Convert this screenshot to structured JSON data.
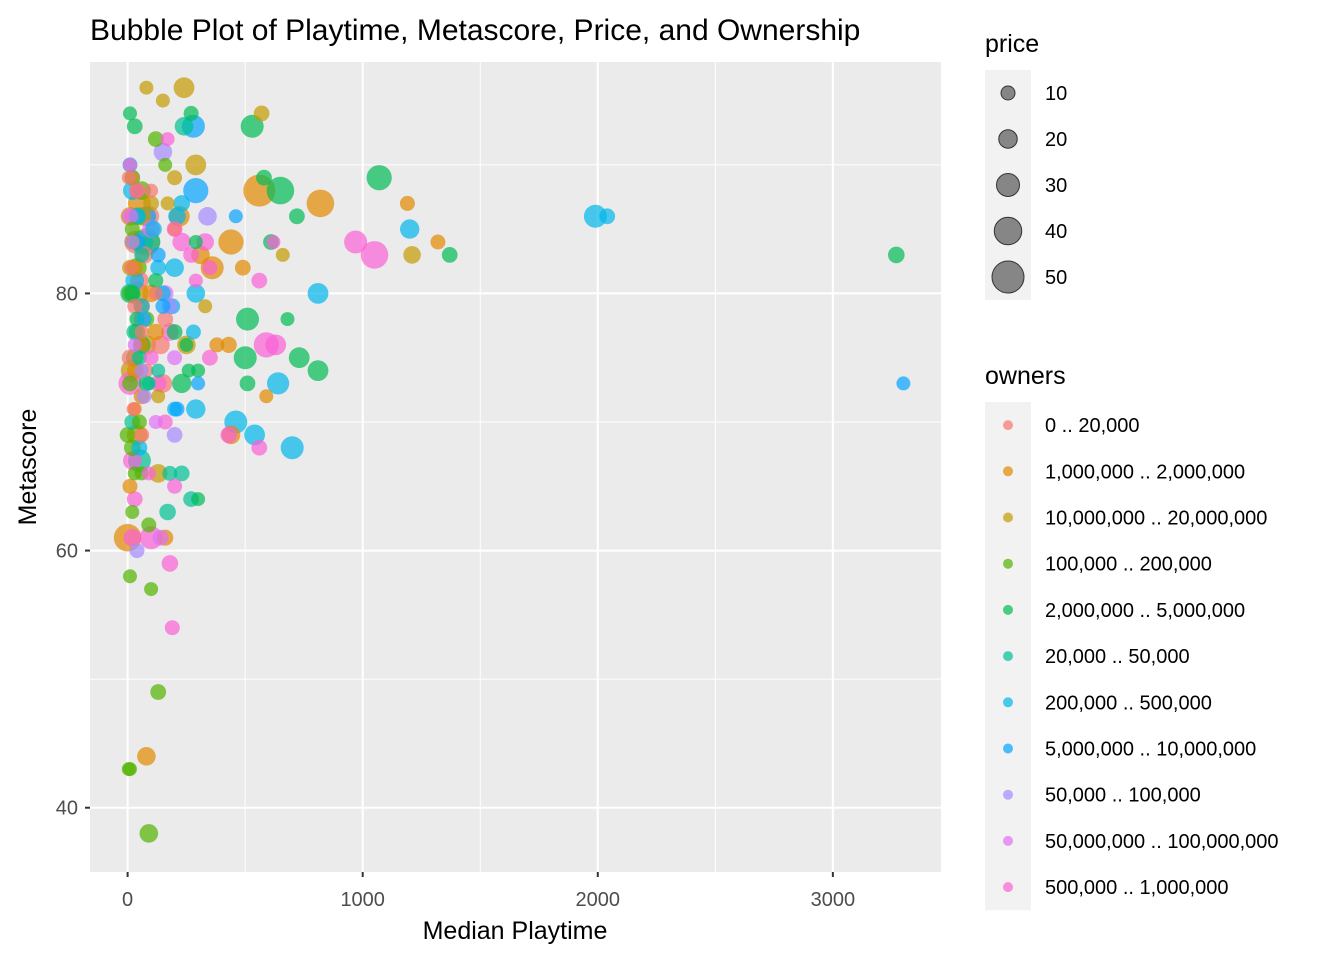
{
  "chart_data": {
    "type": "scatter",
    "title": "Bubble Plot of Playtime, Metascore, Price, and Ownership",
    "xlabel": "Median Playtime",
    "ylabel": "Metascore",
    "xlim": [
      -160,
      3460
    ],
    "ylim": [
      35,
      98
    ],
    "x_ticks": [
      0,
      1000,
      2000,
      3000
    ],
    "x_tick_labels": [
      "0",
      "1000",
      "2000",
      "3000"
    ],
    "y_ticks": [
      40,
      60,
      80
    ],
    "y_tick_labels": [
      "40",
      "60",
      "80"
    ],
    "grid": true,
    "panel_background": "#ebebeb",
    "point_alpha": 0.7,
    "size_legend": {
      "title": "price",
      "labels": [
        "10",
        "20",
        "30",
        "40",
        "50"
      ],
      "values": [
        10,
        20,
        30,
        40,
        50
      ],
      "point_color": "#595959"
    },
    "color_legend": {
      "title": "owners",
      "placement": "right"
    },
    "series": [
      {
        "name": "0 .. 20,000",
        "color": "#F8766D",
        "points": [
          [
            5,
            89,
            8
          ],
          [
            20,
            86,
            14
          ],
          [
            35,
            84,
            30
          ],
          [
            15,
            82,
            10
          ],
          [
            50,
            81,
            20
          ],
          [
            30,
            79,
            12
          ],
          [
            60,
            77,
            8
          ],
          [
            10,
            75,
            16
          ],
          [
            80,
            74,
            10
          ],
          [
            150,
            73,
            20
          ],
          [
            120,
            80,
            6
          ],
          [
            90,
            86,
            25
          ],
          [
            40,
            88,
            12
          ],
          [
            70,
            83,
            18
          ],
          [
            200,
            85,
            10
          ],
          [
            160,
            78,
            14
          ],
          [
            25,
            71,
            8
          ],
          [
            60,
            69,
            12
          ],
          [
            140,
            76,
            20
          ],
          [
            100,
            88,
            8
          ]
        ]
      },
      {
        "name": "1,000,000 .. 2,000,000",
        "color": "#E38900",
        "points": [
          [
            20,
            89,
            12
          ],
          [
            50,
            87,
            30
          ],
          [
            10,
            86,
            20
          ],
          [
            80,
            84,
            40
          ],
          [
            30,
            82,
            15
          ],
          [
            100,
            80,
            18
          ],
          [
            60,
            76,
            12
          ],
          [
            220,
            86,
            25
          ],
          [
            310,
            83,
            20
          ],
          [
            360,
            82,
            30
          ],
          [
            440,
            84,
            35
          ],
          [
            490,
            82,
            14
          ],
          [
            430,
            76,
            15
          ],
          [
            380,
            76,
            12
          ],
          [
            560,
            88,
            50
          ],
          [
            820,
            87,
            40
          ],
          [
            1190,
            87,
            12
          ],
          [
            1320,
            84,
            12
          ],
          [
            0,
            61,
            40
          ],
          [
            160,
            61,
            15
          ],
          [
            80,
            44,
            20
          ],
          [
            30,
            74,
            14
          ],
          [
            10,
            65,
            12
          ],
          [
            60,
            72,
            14
          ],
          [
            120,
            77,
            16
          ],
          [
            440,
            69,
            20
          ],
          [
            30,
            71,
            10
          ],
          [
            590,
            72,
            8
          ]
        ]
      },
      {
        "name": "10,000,000 .. 20,000,000",
        "color": "#C49A00",
        "points": [
          [
            80,
            96,
            10
          ],
          [
            240,
            96,
            25
          ],
          [
            150,
            95,
            10
          ],
          [
            570,
            94,
            14
          ],
          [
            290,
            90,
            25
          ],
          [
            200,
            89,
            12
          ],
          [
            100,
            87,
            14
          ],
          [
            60,
            86,
            20
          ],
          [
            20,
            84,
            12
          ],
          [
            10,
            82,
            14
          ],
          [
            40,
            80,
            30
          ],
          [
            80,
            76,
            22
          ],
          [
            250,
            76,
            20
          ],
          [
            330,
            79,
            10
          ],
          [
            20,
            74,
            30
          ],
          [
            130,
            72,
            10
          ],
          [
            660,
            83,
            10
          ],
          [
            1210,
            83,
            18
          ],
          [
            40,
            69,
            25
          ],
          [
            130,
            66,
            20
          ],
          [
            170,
            87,
            10
          ]
        ]
      },
      {
        "name": "100,000 .. 200,000",
        "color": "#53B400",
        "points": [
          [
            120,
            92,
            14
          ],
          [
            160,
            90,
            10
          ],
          [
            60,
            88,
            20
          ],
          [
            20,
            85,
            12
          ],
          [
            40,
            82,
            22
          ],
          [
            10,
            80,
            16
          ],
          [
            80,
            78,
            14
          ],
          [
            30,
            75,
            18
          ],
          [
            10,
            73,
            14
          ],
          [
            50,
            70,
            12
          ],
          [
            20,
            68,
            16
          ],
          [
            60,
            66,
            10
          ],
          [
            90,
            62,
            12
          ],
          [
            10,
            58,
            8
          ],
          [
            100,
            57,
            10
          ],
          [
            130,
            49,
            14
          ],
          [
            10,
            43,
            10
          ],
          [
            90,
            38,
            20
          ],
          [
            5,
            43,
            8
          ],
          [
            0,
            69,
            14
          ],
          [
            30,
            66,
            10
          ],
          [
            40,
            77,
            16
          ],
          [
            20,
            63,
            8
          ]
        ]
      },
      {
        "name": "2,000,000 .. 5,000,000",
        "color": "#00BC56",
        "points": [
          [
            10,
            94,
            10
          ],
          [
            30,
            93,
            14
          ],
          [
            270,
            94,
            12
          ],
          [
            530,
            93,
            30
          ],
          [
            580,
            89,
            14
          ],
          [
            650,
            88,
            40
          ],
          [
            1070,
            89,
            35
          ],
          [
            720,
            86,
            14
          ],
          [
            20,
            80,
            16
          ],
          [
            40,
            78,
            12
          ],
          [
            60,
            76,
            18
          ],
          [
            200,
            77,
            14
          ],
          [
            250,
            76,
            10
          ],
          [
            300,
            74,
            8
          ],
          [
            230,
            73,
            22
          ],
          [
            510,
            78,
            30
          ],
          [
            500,
            75,
            30
          ],
          [
            510,
            73,
            14
          ],
          [
            730,
            75,
            25
          ],
          [
            810,
            74,
            25
          ],
          [
            610,
            84,
            14
          ],
          [
            680,
            78,
            10
          ],
          [
            1370,
            83,
            14
          ],
          [
            3270,
            83,
            16
          ],
          [
            290,
            84,
            8
          ],
          [
            300,
            64,
            8
          ],
          [
            260,
            74,
            10
          ],
          [
            80,
            73,
            14
          ],
          [
            120,
            81,
            12
          ]
        ]
      },
      {
        "name": "20,000 .. 50,000",
        "color": "#00C094",
        "points": [
          [
            20,
            89,
            14
          ],
          [
            40,
            86,
            18
          ],
          [
            60,
            83,
            12
          ],
          [
            10,
            80,
            22
          ],
          [
            30,
            77,
            16
          ],
          [
            50,
            75,
            12
          ],
          [
            90,
            73,
            10
          ],
          [
            20,
            70,
            14
          ],
          [
            50,
            67,
            30
          ],
          [
            240,
            93,
            20
          ],
          [
            180,
            66,
            12
          ],
          [
            170,
            63,
            16
          ],
          [
            270,
            64,
            14
          ],
          [
            230,
            66,
            14
          ],
          [
            130,
            74,
            10
          ],
          [
            60,
            79,
            14
          ],
          [
            100,
            84,
            20
          ]
        ]
      },
      {
        "name": "200,000 .. 500,000",
        "color": "#00B6EB",
        "points": [
          [
            20,
            88,
            20
          ],
          [
            40,
            86,
            14
          ],
          [
            60,
            84,
            30
          ],
          [
            30,
            81,
            20
          ],
          [
            70,
            78,
            12
          ],
          [
            110,
            85,
            16
          ],
          [
            150,
            80,
            14
          ],
          [
            200,
            82,
            20
          ],
          [
            190,
            79,
            14
          ],
          [
            210,
            86,
            18
          ],
          [
            290,
            80,
            20
          ],
          [
            280,
            77,
            12
          ],
          [
            290,
            71,
            22
          ],
          [
            640,
            73,
            28
          ],
          [
            700,
            68,
            30
          ],
          [
            540,
            69,
            25
          ],
          [
            460,
            70,
            30
          ],
          [
            810,
            80,
            25
          ],
          [
            1200,
            85,
            22
          ],
          [
            1990,
            86,
            30
          ],
          [
            2040,
            86,
            14
          ],
          [
            50,
            68,
            14
          ],
          [
            10,
            90,
            12
          ],
          [
            130,
            82,
            14
          ],
          [
            230,
            87,
            16
          ],
          [
            200,
            71,
            12
          ]
        ]
      },
      {
        "name": "5,000,000 .. 10,000,000",
        "color": "#06A4FF",
        "points": [
          [
            280,
            93,
            30
          ],
          [
            290,
            88,
            35
          ],
          [
            460,
            86,
            10
          ],
          [
            3300,
            73,
            10
          ],
          [
            130,
            83,
            12
          ],
          [
            80,
            86,
            22
          ],
          [
            150,
            79,
            12
          ],
          [
            40,
            84,
            14
          ],
          [
            300,
            73,
            8
          ],
          [
            210,
            71,
            12
          ]
        ]
      },
      {
        "name": "50,000 .. 100,000",
        "color": "#A58AFF",
        "points": [
          [
            20,
            84,
            10
          ],
          [
            150,
            91,
            20
          ],
          [
            340,
            86,
            20
          ],
          [
            180,
            79,
            14
          ],
          [
            70,
            72,
            12
          ],
          [
            40,
            60,
            12
          ],
          [
            200,
            69,
            14
          ],
          [
            60,
            74,
            10
          ]
        ]
      },
      {
        "name": "50,000,000 .. 100,000,000",
        "color": "#DF70F8",
        "points": [
          [
            10,
            86,
            14
          ],
          [
            100,
            85,
            18
          ],
          [
            160,
            80,
            16
          ],
          [
            60,
            78,
            14
          ],
          [
            200,
            75,
            12
          ],
          [
            120,
            70,
            10
          ],
          [
            140,
            61,
            14
          ],
          [
            30,
            76,
            10
          ]
        ]
      },
      {
        "name": "500,000 .. 1,000,000",
        "color": "#FB61D7",
        "points": [
          [
            10,
            90,
            10
          ],
          [
            40,
            88,
            14
          ],
          [
            170,
            92,
            8
          ],
          [
            200,
            85,
            14
          ],
          [
            230,
            84,
            20
          ],
          [
            290,
            81,
            10
          ],
          [
            330,
            84,
            18
          ],
          [
            350,
            82,
            12
          ],
          [
            560,
            81,
            14
          ],
          [
            620,
            84,
            10
          ],
          [
            970,
            84,
            30
          ],
          [
            1050,
            83,
            40
          ],
          [
            590,
            76,
            35
          ],
          [
            630,
            76,
            25
          ],
          [
            560,
            68,
            14
          ],
          [
            350,
            75,
            14
          ],
          [
            430,
            69,
            16
          ],
          [
            160,
            70,
            12
          ],
          [
            130,
            73,
            16
          ],
          [
            100,
            75,
            12
          ],
          [
            60,
            79,
            16
          ],
          [
            10,
            73,
            30
          ],
          [
            20,
            67,
            20
          ],
          [
            30,
            64,
            14
          ],
          [
            20,
            61,
            18
          ],
          [
            100,
            61,
            30
          ],
          [
            180,
            59,
            16
          ],
          [
            190,
            54,
            12
          ],
          [
            200,
            65,
            12
          ],
          [
            90,
            66,
            10
          ],
          [
            270,
            83,
            14
          ],
          [
            180,
            77,
            18
          ]
        ]
      }
    ]
  }
}
